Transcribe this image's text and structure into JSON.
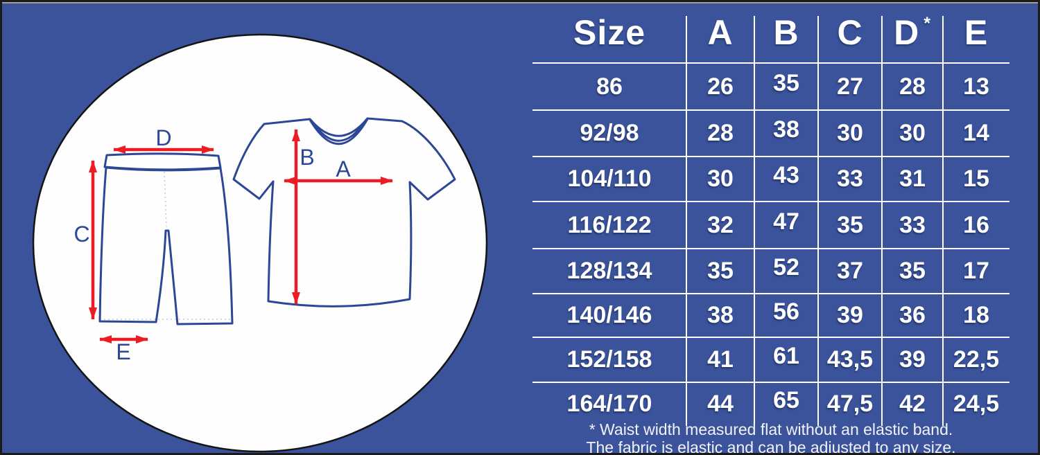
{
  "colors": {
    "background": "#3A539B",
    "table_lines": "#FFFFFF",
    "table_text": "#FFFFFF",
    "garment_outline": "#2C4795",
    "arrow_red": "#EC1C24",
    "ellipse_fill": "#FEFEFE",
    "frame_border": "#1B1B1B"
  },
  "diagram": {
    "labels": {
      "a": "A",
      "b": "B",
      "c": "C",
      "d": "D",
      "e": "E"
    }
  },
  "table": {
    "header": {
      "d": "D",
      "d_marker": "*"
    }
  },
  "chart_data": {
    "type": "table",
    "title": "Size",
    "columns": [
      "Size",
      "A",
      "B",
      "C",
      "D*",
      "E"
    ],
    "rows": [
      [
        "86",
        "26",
        "35",
        "27",
        "28",
        "13"
      ],
      [
        "92/98",
        "28",
        "38",
        "30",
        "30",
        "14"
      ],
      [
        "104/110",
        "30",
        "43",
        "33",
        "31",
        "15"
      ],
      [
        "116/122",
        "32",
        "47",
        "35",
        "33",
        "16"
      ],
      [
        "128/134",
        "35",
        "52",
        "37",
        "35",
        "17"
      ],
      [
        "140/146",
        "38",
        "56",
        "39",
        "36",
        "18"
      ],
      [
        "152/158",
        "41",
        "61",
        "43,5",
        "39",
        "22,5"
      ],
      [
        "164/170",
        "44",
        "65",
        "47,5",
        "42",
        "24,5"
      ]
    ],
    "footnotes": [
      "* Waist width measured flat without an elastic band.",
      "The fabric is elastic and can be adjusted to any size."
    ]
  }
}
